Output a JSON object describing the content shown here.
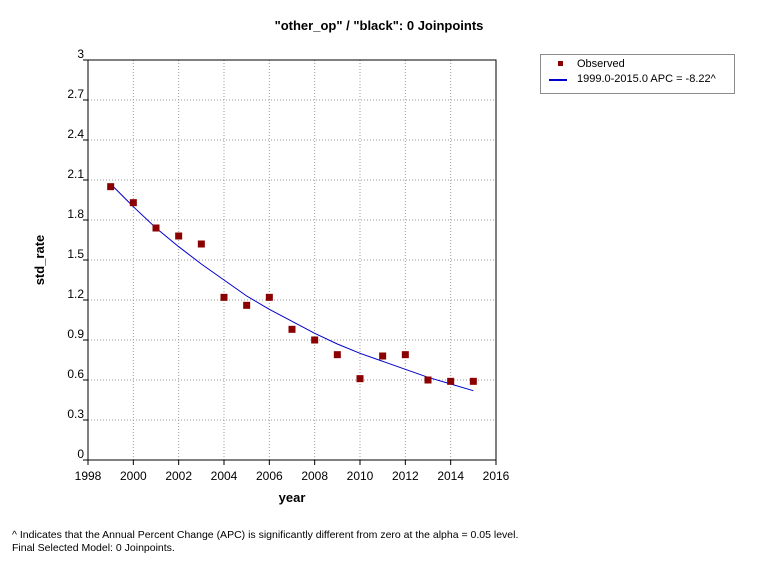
{
  "chart_data": {
    "type": "scatter",
    "title": "\"other_op\" / \"black\": 0 Joinpoints",
    "xlabel": "year",
    "ylabel": "std_rate",
    "xlim": [
      1998,
      2016
    ],
    "ylim": [
      0,
      3
    ],
    "x_ticks": [
      1998,
      2000,
      2002,
      2004,
      2006,
      2008,
      2010,
      2012,
      2014,
      2016
    ],
    "y_ticks": [
      0,
      0.3,
      0.6,
      0.9,
      1.2,
      1.5,
      1.8,
      2.1,
      2.4,
      2.7,
      3
    ],
    "y_tick_labels": [
      "0",
      "0.3",
      "0.6",
      "0.9",
      "1.2",
      "1.5",
      "1.8",
      "2.1",
      "2.4",
      "2.7",
      "3"
    ],
    "grid": true,
    "legend_position": "top-right outside",
    "series": [
      {
        "name": "Observed",
        "kind": "points",
        "color": "#8b0000",
        "x": [
          1999,
          2000,
          2001,
          2002,
          2003,
          2004,
          2005,
          2006,
          2007,
          2008,
          2009,
          2010,
          2011,
          2012,
          2013,
          2014,
          2015
        ],
        "y": [
          2.05,
          1.93,
          1.74,
          1.68,
          1.62,
          1.22,
          1.16,
          1.22,
          0.98,
          0.9,
          0.79,
          0.61,
          0.78,
          0.79,
          0.6,
          0.59,
          0.59
        ]
      },
      {
        "name": "1999.0-2015.0 APC  = -8.22^",
        "kind": "line",
        "color": "#0000cc",
        "x": [
          1999,
          2000,
          2001,
          2002,
          2003,
          2004,
          2005,
          2006,
          2007,
          2008,
          2009,
          2010,
          2011,
          2012,
          2013,
          2014,
          2015
        ],
        "y": [
          2.07,
          1.9,
          1.74,
          1.6,
          1.47,
          1.35,
          1.23,
          1.13,
          1.04,
          0.95,
          0.87,
          0.8,
          0.74,
          0.68,
          0.62,
          0.57,
          0.52
        ]
      }
    ]
  },
  "footnotes": [
    "^ Indicates that the Annual Percent Change (APC) is significantly different from zero at the alpha = 0.05 level.",
    "Final Selected Model: 0 Joinpoints."
  ]
}
